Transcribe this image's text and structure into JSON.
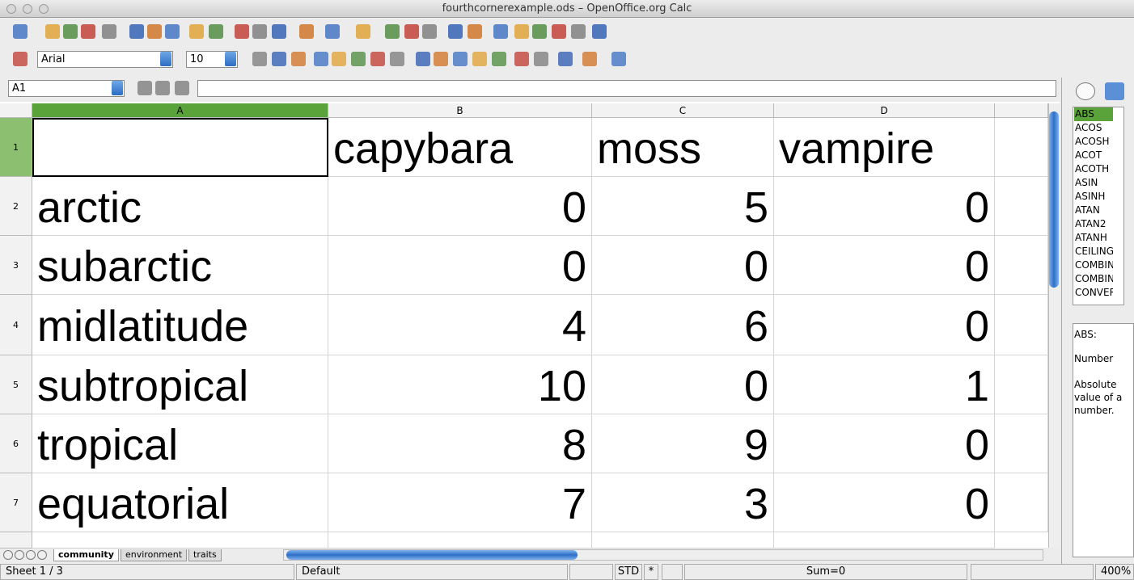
{
  "window": {
    "title": "fourthcornerexample.ods – OpenOffice.org Calc"
  },
  "toolbar": {
    "font_name": "Arial",
    "font_size": "10"
  },
  "formula_bar": {
    "cell_ref": "A1"
  },
  "sheet": {
    "columns": [
      "A",
      "B",
      "C",
      "D"
    ],
    "row_numbers": [
      "1",
      "2",
      "3",
      "4",
      "5",
      "6",
      "7"
    ],
    "header": [
      "capybara",
      "moss",
      "vampire"
    ],
    "rows": [
      {
        "label": "arctic",
        "values": [
          0,
          5,
          0
        ]
      },
      {
        "label": "subarctic",
        "values": [
          0,
          0,
          0
        ]
      },
      {
        "label": "midlatitude",
        "values": [
          4,
          6,
          0
        ]
      },
      {
        "label": "subtropical",
        "values": [
          10,
          0,
          1
        ]
      },
      {
        "label": "tropical",
        "values": [
          8,
          9,
          0
        ]
      },
      {
        "label": "equatorial",
        "values": [
          7,
          3,
          0
        ]
      }
    ]
  },
  "tabs": [
    "community",
    "environment",
    "traits"
  ],
  "functions": {
    "list": [
      "ABS",
      "ACOS",
      "ACOSH",
      "ACOT",
      "ACOTH",
      "ASIN",
      "ASINH",
      "ATAN",
      "ATAN2",
      "ATANH",
      "CEILING",
      "COMBIN",
      "COMBINA",
      "CONVERT"
    ],
    "description": [
      "ABS:",
      "Number",
      "Absolute value of a number."
    ]
  },
  "status": {
    "sheet": "Sheet 1 / 3",
    "style": "Default",
    "mode": "STD",
    "modified": "*",
    "sum": "Sum=0",
    "zoom": "400%"
  }
}
